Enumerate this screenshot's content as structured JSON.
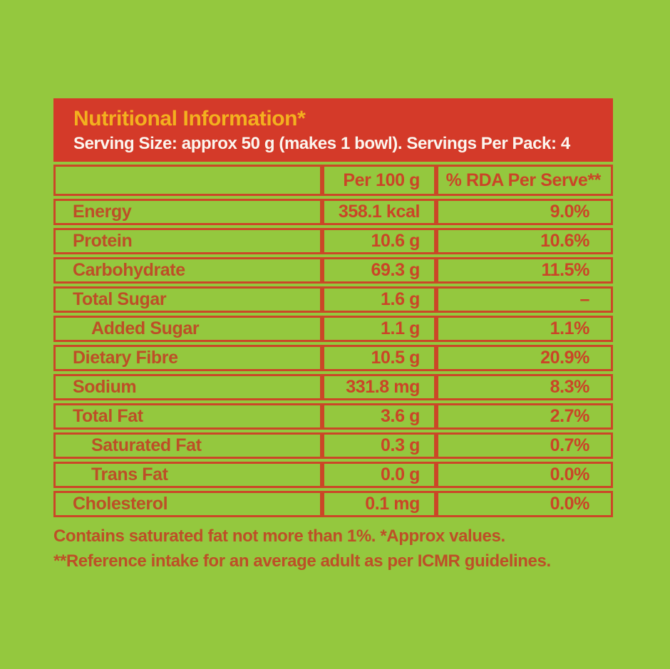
{
  "colors": {
    "background_green": "#94C83E",
    "header_red": "#D43A29",
    "border_red": "#CB4727",
    "label_text_red": "#BD4F27",
    "value_text_red": "#CA4527",
    "title_yellow": "#F3B01F",
    "serving_text_white": "#FBF5EE"
  },
  "header": {
    "title": "Nutritional Information*",
    "serving_info": "Serving Size: approx 50 g (makes 1 bowl). Servings Per Pack: 4"
  },
  "table": {
    "columns": [
      "",
      "Per 100 g",
      "% RDA Per Serve**"
    ],
    "rows": [
      {
        "name": "Energy",
        "per_100g": "358.1 kcal",
        "rda_per_serve": "9.0%",
        "indent": false
      },
      {
        "name": "Protein",
        "per_100g": "10.6 g",
        "rda_per_serve": "10.6%",
        "indent": false
      },
      {
        "name": "Carbohydrate",
        "per_100g": "69.3 g",
        "rda_per_serve": "11.5%",
        "indent": false
      },
      {
        "name": "Total Sugar",
        "per_100g": "1.6 g",
        "rda_per_serve": "–",
        "indent": false
      },
      {
        "name": "Added Sugar",
        "per_100g": "1.1 g",
        "rda_per_serve": "1.1%",
        "indent": true
      },
      {
        "name": "Dietary Fibre",
        "per_100g": "10.5 g",
        "rda_per_serve": "20.9%",
        "indent": false
      },
      {
        "name": "Sodium",
        "per_100g": "331.8 mg",
        "rda_per_serve": "8.3%",
        "indent": false
      },
      {
        "name": "Total Fat",
        "per_100g": "3.6 g",
        "rda_per_serve": "2.7%",
        "indent": false
      },
      {
        "name": "Saturated Fat",
        "per_100g": "0.3 g",
        "rda_per_serve": "0.7%",
        "indent": true
      },
      {
        "name": "Trans Fat",
        "per_100g": "0.0 g",
        "rda_per_serve": "0.0%",
        "indent": true
      },
      {
        "name": "Cholesterol",
        "per_100g": "0.1 mg",
        "rda_per_serve": "0.0%",
        "indent": false
      }
    ]
  },
  "footnotes": [
    "Contains saturated fat not more than 1%. *Approx values.",
    "**Reference intake for an average adult as per ICMR guidelines."
  ]
}
